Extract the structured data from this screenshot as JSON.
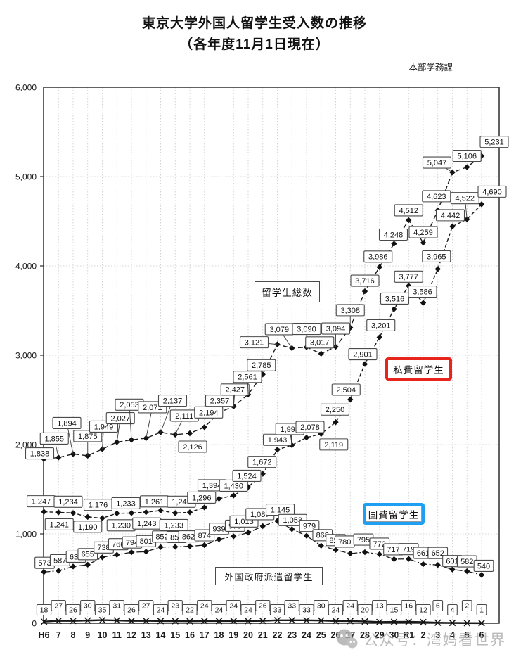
{
  "title": {
    "line1": "東京大学外国人留学生受入数の推移",
    "line2": "（各年度11月1日現在）"
  },
  "credit": "本部学務課",
  "watermark": {
    "text": "公众号：湾妈看世界",
    "icon": "wechat-icon"
  },
  "colors": {
    "line": "#1a1a1a",
    "grid": "#c8c8c8",
    "frame": "#2e2e2e",
    "label_box_border": "#4a4a4a",
    "private_legend_border": "#e8251d",
    "govt_legend_border": "#1e9ff2",
    "watermark_gray": "#aaaaaa"
  },
  "chart_data": {
    "type": "line",
    "title": "東京大学外国人留学生受入数の推移（各年度11月1日現在）",
    "xlabel": "",
    "ylabel": "",
    "ylim": [
      0,
      6000
    ],
    "ytick_interval": 1000,
    "yticks": [
      "0",
      "1,000",
      "2,000",
      "3,000",
      "4,000",
      "5,000",
      "6,000"
    ],
    "grid": true,
    "legend_position": "inline-annotation-boxes",
    "categories": [
      "H6",
      "7",
      "8",
      "9",
      "10",
      "11",
      "12",
      "13",
      "14",
      "15",
      "16",
      "17",
      "18",
      "19",
      "20",
      "21",
      "22",
      "23",
      "24",
      "25",
      "26",
      "27",
      "28",
      "29",
      "30",
      "R1",
      "2",
      "3",
      "4",
      "5",
      "6"
    ],
    "series": [
      {
        "name": "留学生総数",
        "values": [
          1838,
          1855,
          1894,
          1875,
          1949,
          2027,
          2053,
          2071,
          2137,
          2111,
          2126,
          2194,
          2357,
          2427,
          2561,
          2785,
          3121,
          3079,
          3090,
          3017,
          3094,
          3308,
          3716,
          3986,
          4248,
          4512,
          4259,
          4623,
          5047,
          5106,
          5231
        ]
      },
      {
        "name": "私費留学生",
        "values": [
          1247,
          1241,
          1234,
          1190,
          1176,
          1230,
          1233,
          1243,
          1261,
          1233,
          1242,
          1296,
          1394,
          1430,
          1524,
          1672,
          1943,
          1993,
          2078,
          2119,
          2250,
          2504,
          2901,
          3201,
          3516,
          3777,
          3586,
          3965,
          4442,
          4522,
          4690
        ]
      },
      {
        "name": "国費留学生",
        "values": [
          573,
          587,
          634,
          655,
          738,
          766,
          794,
          801,
          852,
          855,
          862,
          874,
          939,
          973,
          1013,
          1087,
          1145,
          1053,
          979,
          868,
          820,
          780,
          795,
          772,
          717,
          719,
          661,
          652,
          601,
          582,
          540
        ]
      },
      {
        "name": "外国政府派遣留学生",
        "values": [
          18,
          27,
          26,
          30,
          35,
          31,
          26,
          27,
          24,
          23,
          22,
          24,
          24,
          24,
          24,
          26,
          33,
          33,
          33,
          30,
          24,
          24,
          20,
          13,
          15,
          16,
          12,
          6,
          4,
          2,
          1
        ]
      }
    ],
    "legend_boxes": [
      {
        "label": "留学生総数"
      },
      {
        "label": "私費留学生"
      },
      {
        "label": "国費留学生"
      },
      {
        "label": "外国政府派遣留学生"
      }
    ]
  }
}
